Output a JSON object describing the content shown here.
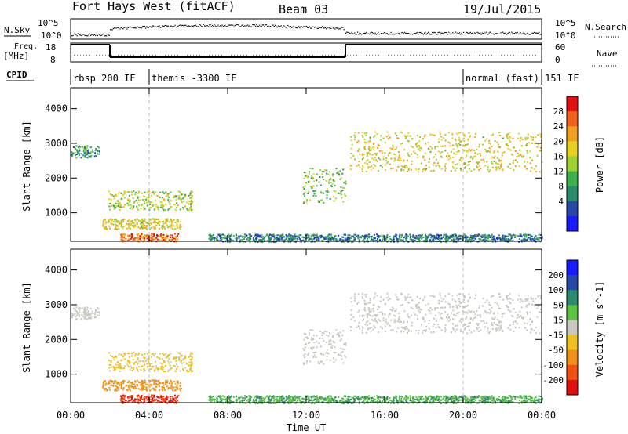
{
  "header": {
    "title": "Fort Hays West (fitACF)",
    "beam": "Beam 03",
    "date": "19/Jul/2015"
  },
  "strip_labels": {
    "nsky": "N.Sky",
    "nsearch": "N.Search",
    "freq": "Freq.",
    "freq_unit": "[MHz]",
    "nave": "Nave",
    "cpid": "CPID"
  },
  "strip_ticks": {
    "noise_left": [
      "10^5",
      "10^0"
    ],
    "noise_right": [
      "10^5",
      "10^0"
    ],
    "freq_left": [
      "18",
      "8"
    ],
    "freq_right": [
      "60",
      "0"
    ]
  },
  "cpid_segments": [
    {
      "label": "rbsp 200 IF",
      "start_h": 0.0,
      "end_h": 4.0
    },
    {
      "label": "themis -3300 IF",
      "start_h": 4.0,
      "end_h": 20.0
    },
    {
      "label": "normal (fast) 151 IF",
      "start_h": 20.0,
      "end_h": 24.0
    }
  ],
  "freq_trace": [
    {
      "start_h": 0.0,
      "end_h": 2.0,
      "level": "high"
    },
    {
      "start_h": 2.0,
      "end_h": 14.0,
      "level": "low"
    },
    {
      "start_h": 14.0,
      "end_h": 24.0,
      "level": "high"
    }
  ],
  "panels": {
    "power": {
      "ylabel": "Slant Range [km]",
      "yticks": [
        "1000",
        "2000",
        "3000",
        "4000"
      ],
      "colorbar_label": "Power [dB]",
      "colorbar_ticks": [
        "4",
        "8",
        "12",
        "16",
        "20",
        "24",
        "28"
      ],
      "colors": [
        "#1a1aff",
        "#2848a8",
        "#2a8a6e",
        "#3cb04a",
        "#9dd030",
        "#e8d020",
        "#f0a020",
        "#f06018",
        "#e01010"
      ]
    },
    "velocity": {
      "ylabel": "Slant Range [km]",
      "yticks": [
        "1000",
        "2000",
        "3000",
        "4000"
      ],
      "colorbar_label": "Velocity [m s^-1]",
      "colorbar_ticks": [
        "200",
        "100",
        "50",
        "15",
        "-15",
        "-50",
        "-100",
        "-200"
      ],
      "colors": [
        "#1a1aff",
        "#2848a8",
        "#2a8a6e",
        "#5cc040",
        "#c8c8c0",
        "#f0c020",
        "#f09018",
        "#f05010",
        "#e01010"
      ]
    }
  },
  "xaxis": {
    "label": "Time UT",
    "ticks": [
      "00:00",
      "04:00",
      "08:00",
      "12:00",
      "16:00",
      "20:00",
      "00:00"
    ]
  },
  "chart_data": {
    "type": "heatmap",
    "title": "Fort Hays West (fitACF)",
    "subtitle": "Beam 03",
    "date": "19/Jul/2015",
    "xlabel": "Time UT",
    "ylabel": "Slant Range [km]",
    "xlim_hours": [
      0,
      24
    ],
    "ylim_km": [
      180,
      4600
    ],
    "power_colorbar": {
      "label": "Power [dB]",
      "range": [
        0,
        30
      ]
    },
    "velocity_colorbar": {
      "label": "Velocity [m s^-1]",
      "range": [
        -200,
        200
      ]
    },
    "scatter_regions": [
      {
        "t0": 0.0,
        "t1": 1.5,
        "r0": 2600,
        "r1": 2950,
        "power": 10,
        "velocity": 5
      },
      {
        "t0": 1.9,
        "t1": 6.2,
        "r0": 1100,
        "r1": 1650,
        "power": 16,
        "velocity": -20
      },
      {
        "t0": 1.6,
        "t1": 5.6,
        "r0": 550,
        "r1": 850,
        "power": 18,
        "velocity": -40
      },
      {
        "t0": 2.5,
        "t1": 5.5,
        "r0": 180,
        "r1": 420,
        "power": 24,
        "velocity": -150
      },
      {
        "t0": 11.8,
        "t1": 14.0,
        "r0": 1300,
        "r1": 2300,
        "power": 13,
        "velocity": 0
      },
      {
        "t0": 14.2,
        "t1": 24.0,
        "r0": 2200,
        "r1": 3350,
        "power": 18,
        "velocity": 5
      },
      {
        "t0": 7.0,
        "t1": 24.0,
        "r0": 180,
        "r1": 400,
        "power": 8,
        "velocity": 30
      }
    ]
  }
}
